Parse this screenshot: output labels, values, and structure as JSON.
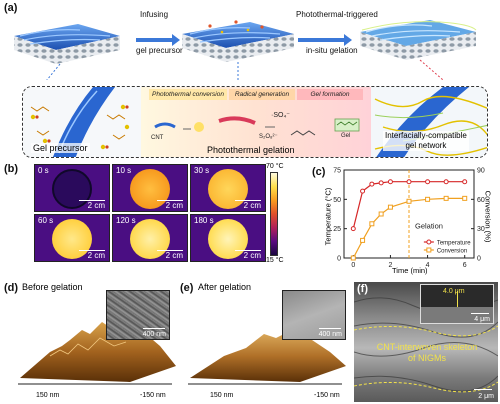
{
  "panel_a": {
    "label": "(a)",
    "arrow1_line1": "Infusing",
    "arrow1_line2": "gel precursor",
    "arrow2_line1": "Photothermal-triggered",
    "arrow2_line2": "in-situ gelation",
    "gel_precursor": "Gel precursor",
    "steps": [
      "Photothermal conversion",
      "Radical generation",
      "Gel formation"
    ],
    "cnt": "CNT",
    "so4": "·SO₄⁻",
    "s2o8": "S₂O₈²⁻",
    "gel": "Gel",
    "photothermal_gelation": "Photothermal gelation",
    "network_line1": "Interfacially-compatible",
    "network_line2": "gel network"
  },
  "panel_b": {
    "label": "(b)",
    "frames": [
      {
        "time": "0 s",
        "scale": "2 cm"
      },
      {
        "time": "10 s",
        "scale": "2 cm"
      },
      {
        "time": "30 s",
        "scale": "2 cm"
      },
      {
        "time": "60 s",
        "scale": "2 cm"
      },
      {
        "time": "120 s",
        "scale": "2 cm"
      },
      {
        "time": "180 s",
        "scale": "2 cm"
      }
    ],
    "colorbar_max": "70 °C",
    "colorbar_min": "15 °C"
  },
  "panel_c": {
    "label": "(c)",
    "annotation": "Gelation"
  },
  "chart_data": {
    "type": "line",
    "xlabel": "Time (min)",
    "ylabel": "Temperature (°C)",
    "y2label": "Conversion (%)",
    "xlim": [
      -0.5,
      6.5
    ],
    "ylim": [
      0,
      75
    ],
    "y2lim": [
      0,
      90
    ],
    "xticks": [
      0,
      2,
      4,
      6
    ],
    "yticks": [
      0,
      25,
      50,
      75
    ],
    "y2ticks": [
      0,
      30,
      60,
      90
    ],
    "gelation_time": 3.0,
    "legend_position": "lower-right",
    "series": [
      {
        "name": "Temperature",
        "axis": "left",
        "color": "#d62728",
        "x": [
          0,
          0.5,
          1,
          1.5,
          2,
          3,
          4,
          5,
          6
        ],
        "y": [
          25,
          57,
          63,
          64,
          65,
          65,
          65,
          65,
          65
        ]
      },
      {
        "name": "Conversion",
        "axis": "right",
        "color": "#f0a020",
        "x": [
          0,
          0.5,
          1,
          1.5,
          2,
          3,
          4,
          5,
          6
        ],
        "y": [
          0,
          18,
          35,
          45,
          52,
          58,
          60,
          61,
          61
        ]
      }
    ]
  },
  "panel_d": {
    "label": "(d)",
    "title": "Before gelation",
    "inset_scale": "400 nm",
    "axis_left": "150 nm",
    "axis_right": "-150 nm"
  },
  "panel_e": {
    "label": "(e)",
    "title": "After gelation",
    "inset_scale": "400 nm",
    "axis_left": "150 nm",
    "axis_right": "-150 nm"
  },
  "panel_f": {
    "label": "(f)",
    "thickness": "4.0 μm",
    "inset_scale": "4 μm",
    "caption_line1": "CNT-interwoven skeleton",
    "caption_line2": "of NIGMs",
    "scale": "2 μm"
  },
  "colors": {
    "cnt_blue": "#2a66d0",
    "arrow_blue": "#3b78d8",
    "dashed_border": "#333",
    "temp_series": "#d62728",
    "conv_series": "#f0a020"
  }
}
